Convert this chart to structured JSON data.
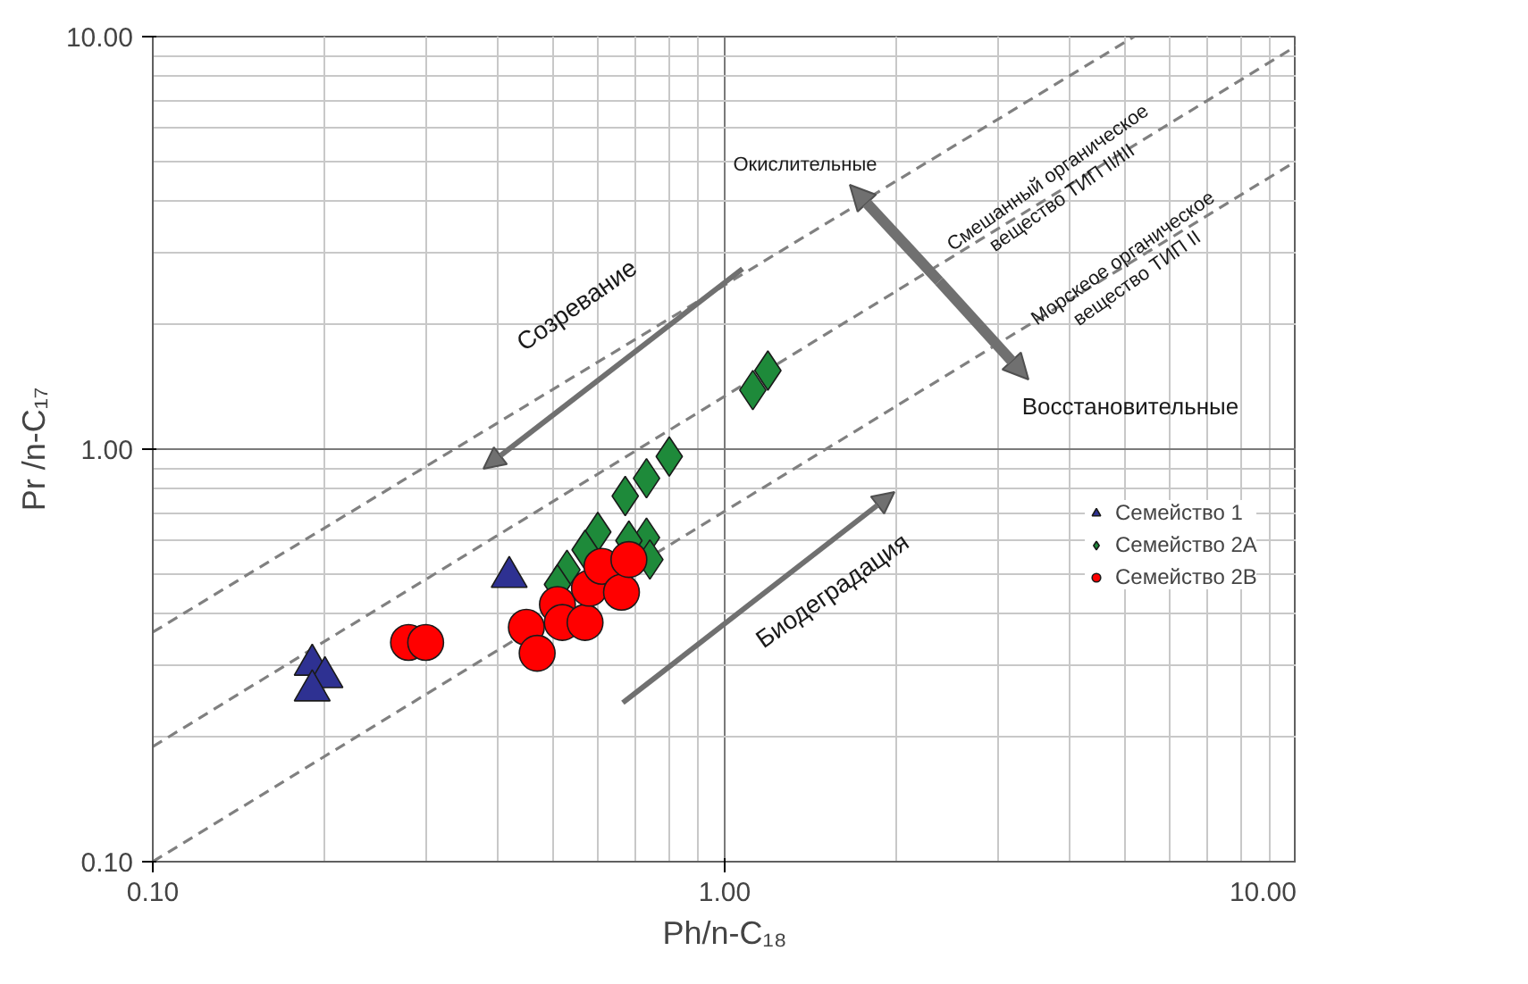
{
  "chart_data": {
    "type": "scatter",
    "xlabel": "Ph/n-C₁₈",
    "ylabel": "Pr /n-C₁₇",
    "log": "xy",
    "grid": true,
    "legend": "right",
    "xlim": [
      0.1,
      10
    ],
    "ylim": [
      0.1,
      10
    ],
    "xticks": [
      {
        "value": 0.1,
        "label": "0.10"
      },
      {
        "value": 1,
        "label": "1.00"
      },
      {
        "value": 10,
        "label": "10.00"
      }
    ],
    "yticks": [
      {
        "value": 0.1,
        "label": "0.10"
      },
      {
        "value": 1,
        "label": "1.00"
      },
      {
        "value": 10,
        "label": "10.00"
      }
    ],
    "series": [
      {
        "type": "line",
        "line_style": "dashed",
        "marker": "none",
        "color": "#808080",
        "x": [
          0.1,
          10
        ],
        "values": [
          0.1,
          5.0
        ]
      },
      {
        "type": "line",
        "line_style": "dashed",
        "marker": "none",
        "color": "#808080",
        "x": [
          0.1,
          10
        ],
        "values": [
          0.19,
          9.5
        ]
      },
      {
        "type": "line",
        "line_style": "dashed",
        "marker": "none",
        "color": "#808080",
        "x": [
          0.1,
          5.2
        ],
        "values": [
          0.36,
          10
        ]
      },
      {
        "name": "Семейство 1",
        "marker": "triangle",
        "color": "#2e3192",
        "x": [
          0.19,
          0.2,
          0.19,
          0.42
        ],
        "values": [
          0.3,
          0.28,
          0.26,
          0.49
        ]
      },
      {
        "name": "Семейство 2А",
        "marker": "diamond",
        "color": "#1e8a3a",
        "x": [
          0.8,
          0.73,
          0.67,
          0.6,
          0.57,
          0.73,
          0.68,
          0.74,
          0.53,
          0.51,
          1.12,
          1.19
        ],
        "values": [
          0.96,
          0.85,
          0.77,
          0.63,
          0.57,
          0.61,
          0.6,
          0.54,
          0.51,
          0.47,
          1.39,
          1.55
        ]
      },
      {
        "name": "Семейство 2В",
        "marker": "circle",
        "color": "#ff0000",
        "x": [
          0.28,
          0.3,
          0.45,
          0.47,
          0.51,
          0.52,
          0.57,
          0.58,
          0.61,
          0.66,
          0.68
        ],
        "values": [
          0.34,
          0.34,
          0.37,
          0.32,
          0.42,
          0.38,
          0.38,
          0.46,
          0.52,
          0.45,
          0.54
        ]
      }
    ],
    "annotations": [
      "Созревание",
      "Биодеградация",
      "Окислительные",
      "Восстановительные",
      "Смешанный органическое\nвещество ТИП II/III",
      "Морскеое органическое\nвещество ТИП II"
    ]
  }
}
